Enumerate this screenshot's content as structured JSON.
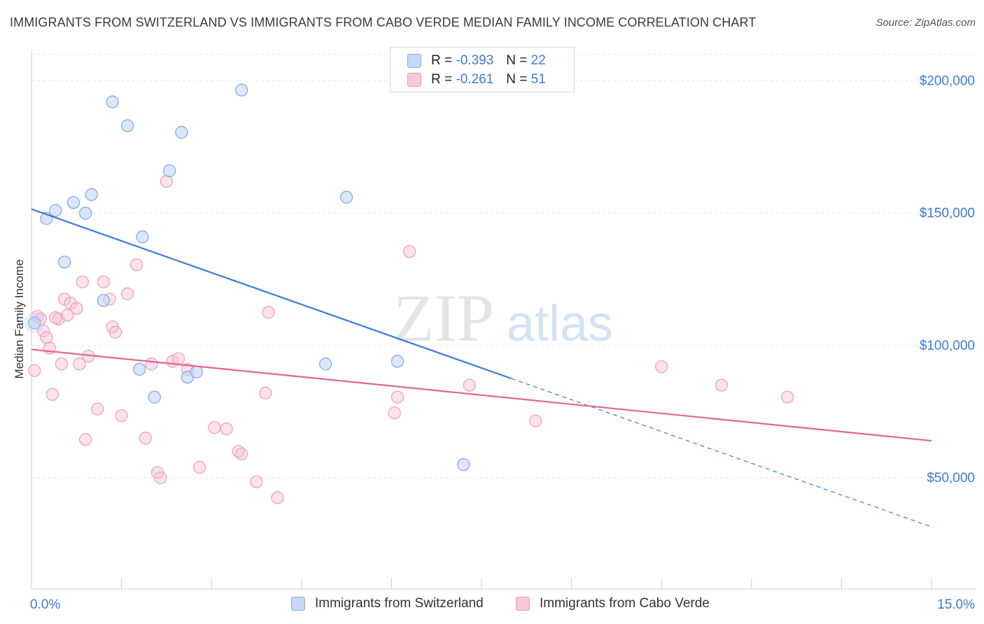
{
  "title": "IMMIGRANTS FROM SWITZERLAND VS IMMIGRANTS FROM CABO VERDE MEDIAN FAMILY INCOME CORRELATION CHART",
  "source": "Source: ZipAtlas.com",
  "watermark": {
    "zip": "ZIP",
    "atlas": "atlas"
  },
  "legend": {
    "rows": [
      {
        "r_label": "R =",
        "r_value": "-0.393",
        "n_label": "N =",
        "n_value": "22"
      },
      {
        "r_label": "R =",
        "r_value": "-0.261",
        "n_label": "N =",
        "n_value": "51"
      }
    ]
  },
  "chart_data": {
    "type": "scatter",
    "ylabel": "Median Family Income",
    "xlabel": "",
    "x_tick_labels": [
      "0.0%",
      "15.0%"
    ],
    "y_tick_labels": [
      "$50,000",
      "$100,000",
      "$150,000",
      "$200,000"
    ],
    "y_ticks": [
      50000,
      100000,
      150000,
      200000
    ],
    "xlim": [
      0,
      15
    ],
    "ylim": [
      8000,
      212000
    ],
    "grid": true,
    "legend_position": "top-center",
    "colors": {
      "switzerland": "#3d7bd6",
      "caboverde": "#e0668e",
      "tick_label": "#3d7bd6"
    },
    "series": [
      {
        "name": "Immigrants from Switzerland",
        "trend": {
          "x0": 0.0,
          "y0": 151500,
          "x1": 8.0,
          "y1": 87500,
          "dash_to_x": 15.0,
          "dash_to_y": 31500
        },
        "points": [
          [
            0.05,
            108500
          ],
          [
            0.25,
            148000
          ],
          [
            0.4,
            151000
          ],
          [
            0.55,
            131500
          ],
          [
            0.7,
            154000
          ],
          [
            0.9,
            150000
          ],
          [
            1.0,
            157000
          ],
          [
            1.2,
            117000
          ],
          [
            1.35,
            192000
          ],
          [
            1.6,
            183000
          ],
          [
            1.8,
            91000
          ],
          [
            1.85,
            141000
          ],
          [
            2.05,
            80500
          ],
          [
            2.3,
            166000
          ],
          [
            2.5,
            180500
          ],
          [
            2.6,
            88000
          ],
          [
            2.75,
            90000
          ],
          [
            3.5,
            196500
          ],
          [
            4.9,
            93000
          ],
          [
            5.25,
            156000
          ],
          [
            6.1,
            94000
          ],
          [
            7.2,
            55000
          ]
        ]
      },
      {
        "name": "Immigrants from Cabo Verde",
        "trend": {
          "x0": 0.0,
          "y0": 98500,
          "x1": 15.0,
          "y1": 64000
        },
        "points": [
          [
            0.05,
            90500
          ],
          [
            0.1,
            111000
          ],
          [
            0.15,
            110000
          ],
          [
            0.2,
            105500
          ],
          [
            0.25,
            103000
          ],
          [
            0.3,
            99000
          ],
          [
            0.35,
            81500
          ],
          [
            0.45,
            110000
          ],
          [
            0.5,
            93000
          ],
          [
            0.55,
            117500
          ],
          [
            0.6,
            111500
          ],
          [
            0.65,
            116000
          ],
          [
            0.75,
            114000
          ],
          [
            0.8,
            93000
          ],
          [
            0.85,
            124000
          ],
          [
            0.9,
            64500
          ],
          [
            0.95,
            96000
          ],
          [
            1.1,
            76000
          ],
          [
            1.2,
            124000
          ],
          [
            1.3,
            117500
          ],
          [
            1.35,
            107000
          ],
          [
            1.4,
            105000
          ],
          [
            1.5,
            73500
          ],
          [
            1.6,
            119500
          ],
          [
            1.75,
            130500
          ],
          [
            1.9,
            65000
          ],
          [
            2.0,
            93000
          ],
          [
            2.1,
            52000
          ],
          [
            2.15,
            50000
          ],
          [
            2.25,
            162000
          ],
          [
            2.35,
            94000
          ],
          [
            2.45,
            95000
          ],
          [
            2.6,
            91000
          ],
          [
            2.8,
            54000
          ],
          [
            3.05,
            69000
          ],
          [
            3.25,
            68500
          ],
          [
            3.45,
            60000
          ],
          [
            3.5,
            59000
          ],
          [
            3.75,
            48500
          ],
          [
            3.9,
            82000
          ],
          [
            3.95,
            112500
          ],
          [
            4.1,
            42500
          ],
          [
            6.05,
            74500
          ],
          [
            6.1,
            80500
          ],
          [
            6.3,
            135500
          ],
          [
            7.3,
            85000
          ],
          [
            8.4,
            71500
          ],
          [
            10.5,
            92000
          ],
          [
            11.5,
            85000
          ],
          [
            12.6,
            80500
          ],
          [
            0.4,
            110500
          ]
        ]
      }
    ]
  }
}
